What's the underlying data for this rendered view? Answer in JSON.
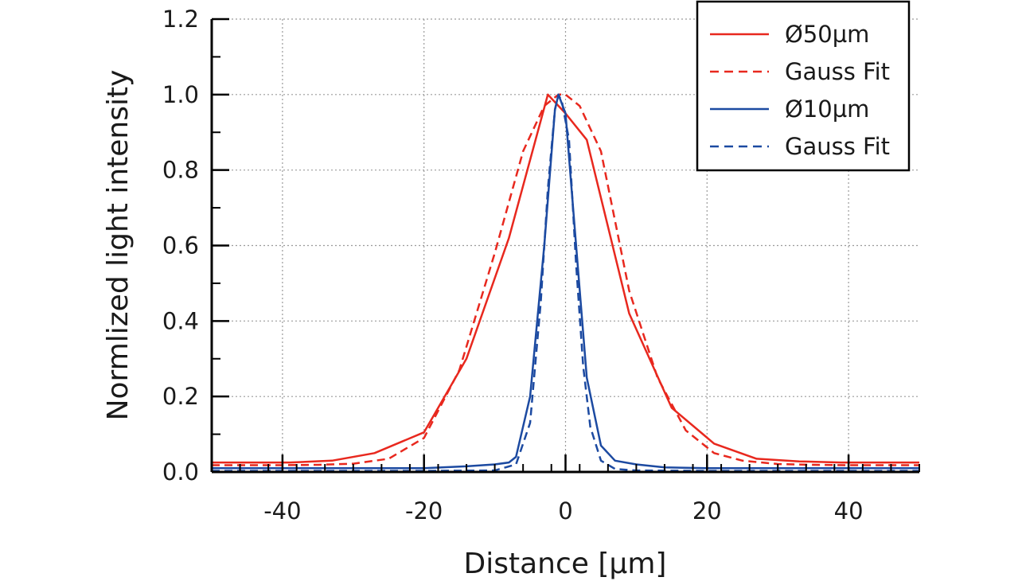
{
  "chart_data": {
    "type": "line",
    "title": "",
    "xlabel": "Distance [µm]",
    "ylabel": "Normlized light intensity",
    "xlim": [
      -50,
      50
    ],
    "ylim": [
      0.0,
      1.2
    ],
    "xticks": [
      -40,
      -20,
      0,
      20,
      40
    ],
    "xtick_labels": [
      "-40",
      "-20",
      "0",
      "20",
      "40"
    ],
    "yticks": [
      0.0,
      0.2,
      0.4,
      0.6,
      0.8,
      1.0,
      1.2
    ],
    "ytick_labels": [
      "0.0",
      "0.2",
      "0.4",
      "0.6",
      "0.8",
      "1.0",
      "1.2"
    ],
    "grid": true,
    "legend_position": "top-right",
    "series": [
      {
        "name": "Ø50µm",
        "color": "#e8281e",
        "dash": "solid",
        "x": [
          -50,
          -45,
          -39,
          -33,
          -27,
          -20,
          -14,
          -8,
          -2.5,
          0,
          3,
          9,
          15,
          21,
          27,
          33,
          39,
          45,
          50
        ],
        "y": [
          0.025,
          0.025,
          0.025,
          0.03,
          0.05,
          0.105,
          0.3,
          0.62,
          1.0,
          0.95,
          0.88,
          0.42,
          0.17,
          0.075,
          0.035,
          0.028,
          0.025,
          0.025,
          0.025
        ]
      },
      {
        "name": "Gauss Fit",
        "color": "#e8281e",
        "dash": "dashed",
        "x": [
          -50,
          -40,
          -35,
          -30,
          -25,
          -20,
          -15,
          -10,
          -6,
          -3,
          -1,
          0,
          2,
          5,
          9,
          13,
          17,
          21,
          25,
          30,
          35,
          40,
          50
        ],
        "y": [
          0.018,
          0.018,
          0.019,
          0.022,
          0.035,
          0.09,
          0.27,
          0.58,
          0.85,
          0.97,
          1.0,
          1.0,
          0.97,
          0.85,
          0.48,
          0.25,
          0.11,
          0.05,
          0.03,
          0.021,
          0.019,
          0.018,
          0.018
        ]
      },
      {
        "name": "Ø10µm",
        "color": "#1c4aa1",
        "dash": "solid",
        "x": [
          -50,
          -40,
          -30,
          -20,
          -14,
          -10,
          -8,
          -7,
          -5,
          -3,
          -1.5,
          -1,
          0,
          1.5,
          3,
          5,
          7,
          10,
          14,
          20,
          30,
          40,
          50
        ],
        "y": [
          0.01,
          0.01,
          0.01,
          0.01,
          0.015,
          0.02,
          0.025,
          0.04,
          0.2,
          0.6,
          0.96,
          1.0,
          0.95,
          0.6,
          0.25,
          0.07,
          0.03,
          0.02,
          0.012,
          0.01,
          0.01,
          0.01,
          0.01
        ]
      },
      {
        "name": "Gauss Fit",
        "color": "#1c4aa1",
        "dash": "dashed",
        "x": [
          -50,
          -20,
          -10,
          -7,
          -5,
          -3.5,
          -2.5,
          -1.5,
          -1,
          -0.5,
          0.5,
          1.5,
          2.5,
          3.5,
          5,
          7,
          10,
          20,
          50
        ],
        "y": [
          0.003,
          0.003,
          0.004,
          0.02,
          0.13,
          0.45,
          0.75,
          0.96,
          1.0,
          0.98,
          0.88,
          0.55,
          0.28,
          0.12,
          0.03,
          0.008,
          0.004,
          0.003,
          0.003
        ]
      }
    ]
  }
}
